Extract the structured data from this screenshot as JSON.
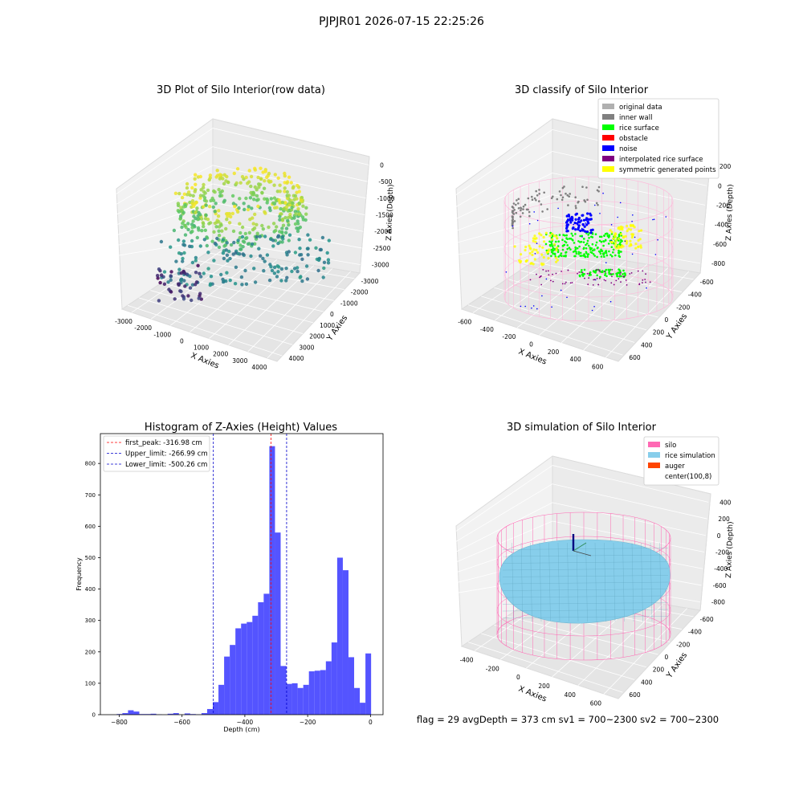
{
  "figure": {
    "suptitle": "PJPJR01 2026-07-15 22:25:26",
    "status_line": "flag = 29  avgDepth = 373 cm  sv1 = 700~2300  sv2 = 700~2300"
  },
  "colors": {
    "hist_bar": "#4b4bff",
    "first_peak": "#ff0000",
    "limit_lines": "#0000cc",
    "silo": "#ff69b4",
    "rice_simulation": "#87ceeb",
    "auger": "#ff4500",
    "rice_surface": "#00ff00",
    "inner_wall": "#808080",
    "noise": "#0000ff",
    "symmetric_points": "#ffff00",
    "interpolated": "#800080",
    "obstacle": "#ff0000",
    "original_data": "#b0b0b0"
  },
  "panels": {
    "raw": {
      "title": "3D Plot of Silo Interior(row data)",
      "xlabel": "X Axies",
      "ylabel": "Y Axies",
      "zlabel": "Z Axies (Depth)",
      "x_ticks": [
        "-3000",
        "-2000",
        "-1000",
        "0",
        "1000",
        "2000",
        "3000",
        "4000"
      ],
      "y_ticks": [
        "4000",
        "3000",
        "2000",
        "1000",
        "0",
        "-1000",
        "-2000",
        "-3000"
      ],
      "z_ticks": [
        "0",
        "-500",
        "-1000",
        "-1500",
        "-2000",
        "-2500",
        "-3000"
      ]
    },
    "classify": {
      "title": "3D classify of Silo Interior",
      "xlabel": "X Axies",
      "ylabel": "Y Axies",
      "zlabel": "Z Axies (Depth)",
      "x_ticks": [
        "-600",
        "-400",
        "-200",
        "0",
        "200",
        "400",
        "600"
      ],
      "y_ticks": [
        "600",
        "400",
        "200",
        "0",
        "-200",
        "-400",
        "-600"
      ],
      "z_ticks": [
        "200",
        "0",
        "-200",
        "-400",
        "-600",
        "-800"
      ],
      "legend": [
        {
          "label": "original data",
          "color": "#b0b0b0"
        },
        {
          "label": "inner wall",
          "color": "#808080"
        },
        {
          "label": "rice surface",
          "color": "#00ff00"
        },
        {
          "label": "obstacle",
          "color": "#ff0000"
        },
        {
          "label": "noise",
          "color": "#0000ff"
        },
        {
          "label": "interpolated rice surface",
          "color": "#800080"
        },
        {
          "label": "symmetric generated points",
          "color": "#ffff00"
        }
      ]
    },
    "simulation": {
      "title": "3D simulation of Silo Interior",
      "xlabel": "X Axies",
      "ylabel": "Y Axies",
      "zlabel": "Z Axies (Depth)",
      "x_ticks": [
        "-400",
        "-200",
        "0",
        "200",
        "400",
        "600"
      ],
      "y_ticks": [
        "600",
        "400",
        "200",
        "0",
        "-200",
        "-400",
        "-600"
      ],
      "z_ticks": [
        "400",
        "200",
        "0",
        "-200",
        "-400",
        "-600",
        "-800"
      ],
      "legend": [
        {
          "label": "silo",
          "color": "#ff69b4"
        },
        {
          "label": "rice simulation",
          "color": "#87ceeb"
        },
        {
          "label": "auger",
          "color": "#ff4500"
        },
        {
          "label": "center(100,8)",
          "color": "#ffffff"
        }
      ]
    }
  },
  "chart_data": {
    "type": "bar",
    "title": "Histogram of Z-Axies (Height) Values",
    "xlabel": "Depth (cm)",
    "ylabel": "Frequency",
    "xlim": [
      -860,
      40
    ],
    "ylim": [
      0,
      895
    ],
    "x_ticks": [
      -800,
      -600,
      -400,
      -200,
      0
    ],
    "x_tick_labels": [
      "−800",
      "−600",
      "−400",
      "−200",
      "0"
    ],
    "y_ticks": [
      0,
      100,
      200,
      300,
      400,
      500,
      600,
      700,
      800
    ],
    "grid": false,
    "legend_position": "top-left",
    "bins": {
      "left": [
        -808,
        -790,
        -772,
        -754,
        -736,
        -718,
        -700,
        -682,
        -664,
        -646,
        -628,
        -610,
        -592,
        -574,
        -556,
        -538,
        -520,
        -502,
        -484,
        -466,
        -448,
        -430,
        -412,
        -394,
        -376,
        -358,
        -340,
        -322,
        -304,
        -286,
        -268,
        -250,
        -232,
        -214,
        -196,
        -178,
        -160,
        -142,
        -124,
        -106,
        -88,
        -70,
        -52,
        -34,
        -16
      ],
      "width": 18,
      "counts": [
        2,
        5,
        14,
        10,
        2,
        2,
        3,
        1,
        0,
        3,
        5,
        0,
        4,
        2,
        1,
        5,
        18,
        40,
        95,
        185,
        222,
        275,
        290,
        295,
        315,
        358,
        385,
        855,
        580,
        155,
        98,
        100,
        85,
        95,
        138,
        140,
        142,
        170,
        230,
        500,
        460,
        183,
        85,
        38,
        195
      ]
    },
    "reference_lines": [
      {
        "label": "first_peak: -316.98 cm",
        "x": -316.98,
        "color": "#ff0000"
      },
      {
        "label": "Upper_limit: -266.99 cm",
        "x": -266.99,
        "color": "#0000cc"
      },
      {
        "label": "Lower_limit: -500.26 cm",
        "x": -500.26,
        "color": "#0000cc"
      }
    ]
  }
}
